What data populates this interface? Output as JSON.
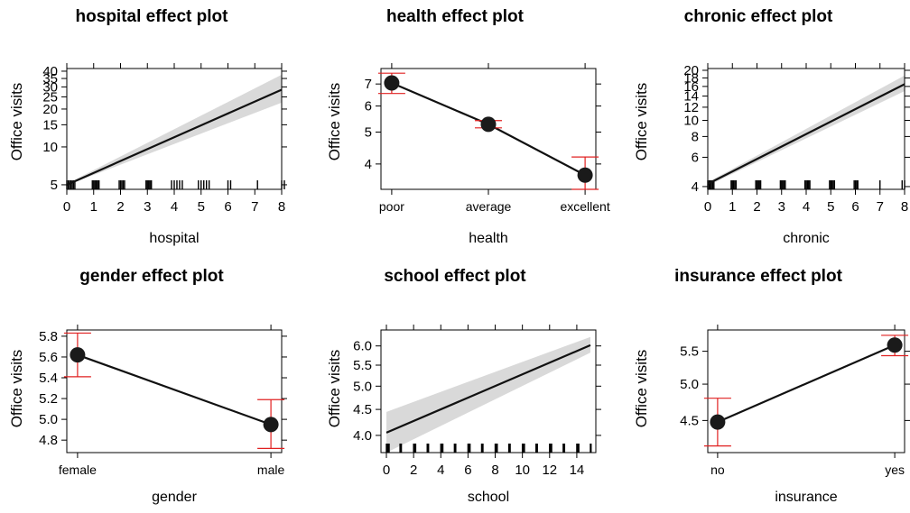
{
  "chart_data": [
    {
      "id": "hospital",
      "type": "line",
      "title": "hospital effect plot",
      "xlabel": "hospital",
      "ylabel": "Office visits",
      "scale": "log",
      "xlim": [
        0,
        8
      ],
      "ylim": [
        4.6,
        42
      ],
      "xticks": [
        0,
        1,
        2,
        3,
        4,
        5,
        6,
        7,
        8
      ],
      "yticks": [
        5,
        10,
        15,
        20,
        25,
        30,
        35,
        40
      ],
      "line": {
        "x": [
          0,
          8
        ],
        "y": [
          5.0,
          28.5
        ]
      },
      "band": {
        "x": [
          0,
          8
        ],
        "lower": [
          4.95,
          22.5
        ],
        "upper": [
          5.1,
          37.5
        ]
      },
      "rug": [
        0,
        0.05,
        0.1,
        0.15,
        0.2,
        0.25,
        0.3,
        0.95,
        1,
        1.05,
        1.1,
        1.15,
        1.2,
        1.95,
        2,
        2.05,
        2.1,
        2.15,
        2.95,
        3,
        3.05,
        3.1,
        3.15,
        3.9,
        4,
        4.1,
        4.2,
        4.3,
        4.9,
        5,
        5.1,
        5.2,
        5.3,
        6.0,
        6.1,
        7.1,
        8.0,
        8.1
      ]
    },
    {
      "id": "health",
      "type": "line",
      "title": "health effect plot",
      "xlabel": "health",
      "ylabel": "Office visits",
      "scale": "log",
      "categories": [
        "poor",
        "average",
        "excellent"
      ],
      "ylim": [
        3.35,
        7.8
      ],
      "yticks": [
        4,
        5,
        6,
        7
      ],
      "values": [
        7.05,
        5.28,
        3.7
      ],
      "errors": [
        [
          6.55,
          7.55
        ],
        [
          5.15,
          5.42
        ],
        [
          3.35,
          4.2
        ]
      ]
    },
    {
      "id": "chronic",
      "type": "line",
      "title": "chronic effect plot",
      "xlabel": "chronic",
      "ylabel": "Office visits",
      "scale": "log",
      "xlim": [
        0,
        8
      ],
      "ylim": [
        3.85,
        20.5
      ],
      "xticks": [
        0,
        1,
        2,
        3,
        4,
        5,
        6,
        7,
        8
      ],
      "yticks": [
        4,
        6,
        8,
        10,
        12,
        14,
        16,
        18,
        20
      ],
      "line": {
        "x": [
          0,
          8
        ],
        "y": [
          4.15,
          16.5
        ]
      },
      "band": {
        "x": [
          0,
          8
        ],
        "lower": [
          4.05,
          15.0
        ],
        "upper": [
          4.25,
          18.6
        ]
      },
      "rug": [
        0,
        0.05,
        0.1,
        0.15,
        0.2,
        0.25,
        0.95,
        1,
        1.05,
        1.1,
        1.15,
        1.95,
        2,
        2.05,
        2.1,
        2.15,
        2.95,
        3,
        3.05,
        3.1,
        3.15,
        3.95,
        4,
        4.05,
        4.1,
        4.15,
        4.95,
        5,
        5.05,
        5.1,
        5.15,
        5.95,
        6,
        6.05,
        6.1,
        7.0,
        7.9,
        8.0
      ]
    },
    {
      "id": "gender",
      "type": "line",
      "title": "gender effect plot",
      "xlabel": "gender",
      "ylabel": "Office visits",
      "scale": "linear",
      "categories": [
        "female",
        "male"
      ],
      "ylim": [
        4.68,
        5.86
      ],
      "yticks": [
        4.8,
        5.0,
        5.2,
        5.4,
        5.6,
        5.8
      ],
      "ytick_labels": [
        "4.8",
        "5.0",
        "5.2",
        "5.4",
        "5.6",
        "5.8"
      ],
      "values": [
        5.62,
        4.95
      ],
      "errors": [
        [
          5.41,
          5.83
        ],
        [
          4.72,
          5.19
        ]
      ]
    },
    {
      "id": "school",
      "type": "line",
      "title": "school effect plot",
      "xlabel": "school",
      "ylabel": "Office visits",
      "scale": "log",
      "xlim": [
        -0.4,
        15.4
      ],
      "ylim": [
        3.7,
        6.45
      ],
      "xticks": [
        0,
        2,
        4,
        6,
        8,
        10,
        12,
        14
      ],
      "yticks": [
        4.0,
        4.5,
        5.0,
        5.5,
        6.0
      ],
      "ytick_labels": [
        "4.0",
        "4.5",
        "5.0",
        "5.5",
        "6.0"
      ],
      "line": {
        "x": [
          0,
          15
        ],
        "y": [
          4.05,
          6.02
        ]
      },
      "band": {
        "x": [
          0,
          15
        ],
        "lower": [
          3.7,
          5.82
        ],
        "upper": [
          4.45,
          6.25
        ]
      },
      "rug": [
        0,
        0.05,
        0.1,
        0.15,
        0.2,
        1,
        1.05,
        1.1,
        2,
        2.05,
        2.1,
        2.15,
        3,
        3.05,
        3.1,
        4,
        4.05,
        4.1,
        4.15,
        5,
        5.05,
        5.1,
        6,
        6.05,
        6.1,
        6.15,
        7,
        7.05,
        7.1,
        8,
        8.05,
        8.1,
        8.15,
        9,
        9.05,
        9.1,
        10,
        10.05,
        10.1,
        10.15,
        11,
        11.05,
        11.1,
        12,
        12.05,
        12.1,
        12.15,
        13,
        13.05,
        13.1,
        14,
        14.05,
        14.1,
        14.15,
        15,
        15.05
      ]
    },
    {
      "id": "insurance",
      "type": "line",
      "title": "insurance effect plot",
      "xlabel": "insurance",
      "ylabel": "Office visits",
      "scale": "log",
      "categories": [
        "no",
        "yes"
      ],
      "ylim": [
        4.1,
        5.85
      ],
      "yticks": [
        4.5,
        5.0,
        5.5
      ],
      "ytick_labels": [
        "4.5",
        "5.0",
        "5.5"
      ],
      "values": [
        4.48,
        5.6
      ],
      "errors": [
        [
          4.18,
          4.8
        ],
        [
          5.43,
          5.76
        ]
      ]
    }
  ]
}
